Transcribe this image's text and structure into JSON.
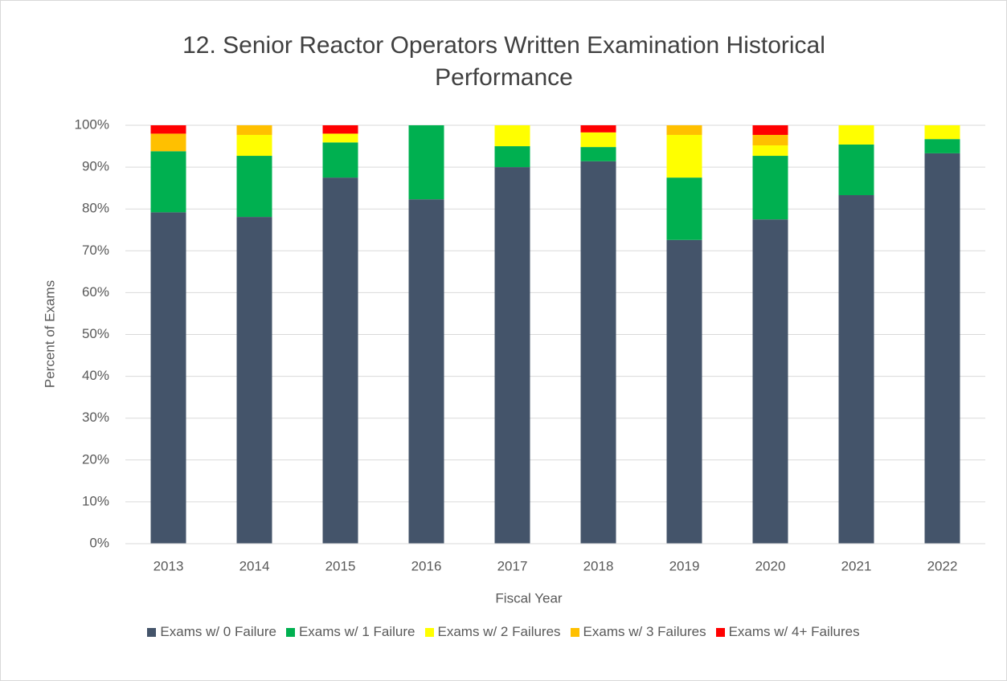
{
  "chart_data": {
    "type": "stacked_bar",
    "title": "12. Senior Reactor Operators Written Examination Historical Performance",
    "x_label": "Fiscal Year",
    "y_label": "Percent of Exams",
    "categories": [
      "2013",
      "2014",
      "2015",
      "2016",
      "2017",
      "2018",
      "2019",
      "2020",
      "2021",
      "2022"
    ],
    "series": [
      {
        "name": "Exams w/ 0 Failure",
        "color": "#44546a",
        "values": [
          79.2,
          78.1,
          87.5,
          82.3,
          90.0,
          91.4,
          72.6,
          77.5,
          83.3,
          93.3
        ]
      },
      {
        "name": "Exams w/ 1 Failure",
        "color": "#00b050",
        "values": [
          14.6,
          14.6,
          8.4,
          17.7,
          5.0,
          3.4,
          14.9,
          15.2,
          12.1,
          3.4
        ]
      },
      {
        "name": "Exams w/ 2 Failures",
        "color": "#ffff00",
        "values": [
          0,
          5.0,
          2.1,
          0,
          5.0,
          3.5,
          10.2,
          2.5,
          4.6,
          3.3
        ]
      },
      {
        "name": "Exams w/ 3 Failures",
        "color": "#ffc000",
        "values": [
          4.2,
          2.3,
          0,
          0,
          0,
          0,
          2.3,
          2.5,
          0,
          0
        ]
      },
      {
        "name": "Exams w/ 4+ Failures",
        "color": "#ff0000",
        "values": [
          2.0,
          0,
          2.0,
          0,
          0,
          1.7,
          0,
          2.3,
          0,
          0
        ]
      }
    ],
    "ylim": [
      0,
      100
    ],
    "yticks": [
      {
        "value": 0,
        "label": "0%"
      },
      {
        "value": 10,
        "label": "10%"
      },
      {
        "value": 20,
        "label": "20%"
      },
      {
        "value": 30,
        "label": "30%"
      },
      {
        "value": 40,
        "label": "40%"
      },
      {
        "value": 50,
        "label": "50%"
      },
      {
        "value": 60,
        "label": "60%"
      },
      {
        "value": 70,
        "label": "70%"
      },
      {
        "value": 80,
        "label": "80%"
      },
      {
        "value": 90,
        "label": "90%"
      },
      {
        "value": 100,
        "label": "100%"
      }
    ],
    "grid": true,
    "legend": "bottom"
  }
}
